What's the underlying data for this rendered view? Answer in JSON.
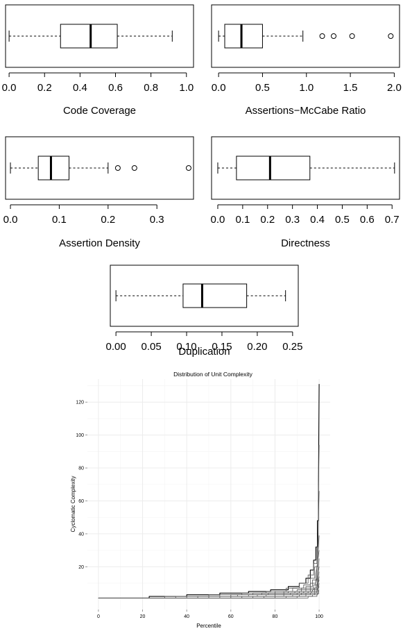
{
  "chart_data": [
    {
      "type": "box",
      "xlabel": "Code Coverage",
      "ticks": [
        0.0,
        0.2,
        0.4,
        0.6,
        0.8,
        1.0
      ],
      "tick_labels": [
        "0.0",
        "0.2",
        "0.4",
        "0.6",
        "0.8",
        "1.0"
      ],
      "xlim": [
        -0.02,
        1.04
      ],
      "stats": {
        "min": 0.0,
        "q1": 0.29,
        "median": 0.46,
        "q3": 0.61,
        "max": 0.92
      },
      "outliers": []
    },
    {
      "type": "box",
      "xlabel": "Assertions−McCabe Ratio",
      "ticks": [
        0.0,
        0.5,
        1.0,
        1.5,
        2.0
      ],
      "tick_labels": [
        "0.0",
        "0.5",
        "1.0",
        "1.5",
        "2.0"
      ],
      "xlim": [
        -0.08,
        2.06
      ],
      "stats": {
        "min": 0.0,
        "q1": 0.07,
        "median": 0.26,
        "q3": 0.5,
        "max": 0.96
      },
      "outliers": [
        1.18,
        1.31,
        1.52,
        1.96
      ]
    },
    {
      "type": "box",
      "xlabel": "Assertion Density",
      "ticks": [
        0.0,
        0.1,
        0.2,
        0.3
      ],
      "tick_labels": [
        "0.0",
        "0.1",
        "0.2",
        "0.3"
      ],
      "xlim": [
        -0.01,
        0.375
      ],
      "stats": {
        "min": 0.0,
        "q1": 0.057,
        "median": 0.083,
        "q3": 0.12,
        "max": 0.2
      },
      "outliers": [
        0.22,
        0.254,
        0.365
      ]
    },
    {
      "type": "box",
      "xlabel": "Directness",
      "ticks": [
        0.0,
        0.1,
        0.2,
        0.3,
        0.4,
        0.5,
        0.6,
        0.7
      ],
      "tick_labels": [
        "0.0",
        "0.1",
        "0.2",
        "0.3",
        "0.4",
        "0.5",
        "0.6",
        "0.7"
      ],
      "xlim": [
        -0.025,
        0.73
      ],
      "stats": {
        "min": 0.0,
        "q1": 0.075,
        "median": 0.21,
        "q3": 0.37,
        "max": 0.71
      },
      "outliers": []
    },
    {
      "type": "box",
      "xlabel": "Duplication",
      "ticks": [
        0.0,
        0.05,
        0.1,
        0.15,
        0.2,
        0.25
      ],
      "tick_labels": [
        "0.00",
        "0.05",
        "0.10",
        "0.15",
        "0.20",
        "0.25"
      ],
      "xlim": [
        -0.008,
        0.258
      ],
      "stats": {
        "min": 0.0,
        "q1": 0.095,
        "median": 0.122,
        "q3": 0.185,
        "max": 0.24
      },
      "outliers": []
    },
    {
      "type": "line",
      "title": "Distribution of Unit Complexity",
      "xlabel": "Percentile",
      "ylabel": "Cyclomatic Complexity",
      "xlim": [
        -5,
        105
      ],
      "ylim": [
        -6,
        134
      ],
      "xticks": [
        0,
        20,
        40,
        60,
        80,
        100
      ],
      "yticks": [
        20,
        40,
        60,
        80,
        100,
        120
      ],
      "grid": true,
      "series": [
        {
          "x": [
            0,
            23,
            23,
            40,
            40,
            55,
            55,
            68,
            68,
            78,
            78,
            86,
            86,
            91,
            91,
            94,
            94,
            96,
            96,
            97.5,
            97.5,
            98.5,
            98.5,
            99.2,
            99.2,
            99.7,
            99.7,
            100
          ],
          "y": [
            1,
            1,
            2,
            2,
            3,
            3,
            4,
            4,
            5,
            5,
            6,
            6,
            8,
            8,
            10,
            10,
            13,
            13,
            18,
            18,
            24,
            24,
            32,
            32,
            48,
            48,
            70,
            131
          ]
        },
        {
          "x": [
            0,
            30,
            30,
            50,
            50,
            65,
            65,
            76,
            76,
            85,
            85,
            91,
            91,
            95,
            95,
            97.5,
            97.5,
            99,
            99,
            99.6,
            99.6,
            100
          ],
          "y": [
            1,
            1,
            2,
            2,
            3,
            3,
            4,
            4,
            5,
            5,
            7,
            7,
            10,
            10,
            15,
            15,
            22,
            22,
            32,
            32,
            60,
            94
          ]
        },
        {
          "x": [
            0,
            35,
            35,
            55,
            55,
            70,
            70,
            80,
            80,
            88,
            88,
            93,
            93,
            96,
            96,
            98,
            98,
            99.3,
            99.3,
            100
          ],
          "y": [
            1,
            1,
            2,
            2,
            3,
            3,
            4,
            4,
            5,
            5,
            7,
            7,
            9,
            9,
            13,
            13,
            20,
            20,
            30,
            66
          ]
        },
        {
          "x": [
            0,
            40,
            40,
            60,
            60,
            74,
            74,
            84,
            84,
            90,
            90,
            94,
            94,
            97,
            97,
            99,
            99,
            100
          ],
          "y": [
            1,
            1,
            2,
            2,
            3,
            3,
            4,
            4,
            5,
            5,
            6,
            6,
            8,
            8,
            12,
            12,
            18,
            39
          ]
        },
        {
          "x": [
            0,
            45,
            45,
            63,
            63,
            77,
            77,
            86,
            86,
            92,
            92,
            96,
            96,
            98.5,
            98.5,
            100
          ],
          "y": [
            1,
            1,
            2,
            2,
            3,
            3,
            4,
            4,
            5,
            5,
            7,
            7,
            10,
            10,
            15,
            30
          ]
        },
        {
          "x": [
            0,
            50,
            50,
            68,
            68,
            80,
            80,
            89,
            89,
            94,
            94,
            97.5,
            97.5,
            99.2,
            99.2,
            100
          ],
          "y": [
            1,
            1,
            2,
            2,
            3,
            3,
            4,
            4,
            5,
            5,
            6,
            6,
            9,
            9,
            13,
            25
          ]
        },
        {
          "x": [
            0,
            55,
            55,
            72,
            72,
            84,
            84,
            91,
            91,
            96,
            96,
            98.5,
            98.5,
            100
          ],
          "y": [
            1,
            1,
            2,
            2,
            3,
            3,
            4,
            4,
            5,
            5,
            7,
            7,
            10,
            20
          ]
        },
        {
          "x": [
            0,
            60,
            60,
            76,
            76,
            87,
            87,
            93,
            93,
            97,
            97,
            99,
            99,
            100
          ],
          "y": [
            1,
            1,
            2,
            2,
            3,
            3,
            4,
            4,
            5,
            5,
            6,
            6,
            8,
            17
          ]
        },
        {
          "x": [
            0,
            65,
            65,
            80,
            80,
            90,
            90,
            95,
            95,
            98,
            98,
            99.5,
            99.5,
            100
          ],
          "y": [
            1,
            1,
            2,
            2,
            3,
            3,
            4,
            4,
            5,
            5,
            7,
            7,
            10,
            14
          ]
        },
        {
          "x": [
            0,
            70,
            70,
            84,
            84,
            92,
            92,
            96.5,
            96.5,
            99,
            99,
            100
          ],
          "y": [
            1,
            1,
            2,
            2,
            3,
            3,
            4,
            4,
            5,
            5,
            7,
            12
          ]
        },
        {
          "x": [
            0,
            75,
            75,
            88,
            88,
            94,
            94,
            98,
            98,
            99.5,
            99.5,
            100
          ],
          "y": [
            1,
            1,
            2,
            2,
            3,
            3,
            4,
            4,
            5,
            5,
            6,
            10
          ]
        },
        {
          "x": [
            0,
            80,
            80,
            91,
            91,
            96,
            96,
            98.8,
            98.8,
            100
          ],
          "y": [
            1,
            1,
            2,
            2,
            3,
            3,
            4,
            4,
            5,
            8
          ]
        },
        {
          "x": [
            0,
            85,
            85,
            94,
            94,
            98,
            98,
            99.5,
            99.5,
            100
          ],
          "y": [
            1,
            1,
            2,
            2,
            3,
            3,
            4,
            4,
            5,
            6
          ]
        },
        {
          "x": [
            0,
            90,
            90,
            97,
            97,
            99.3,
            99.3,
            100
          ],
          "y": [
            1,
            1,
            2,
            2,
            3,
            3,
            4,
            5
          ]
        },
        {
          "x": [
            0,
            95,
            95,
            99,
            99,
            100
          ],
          "y": [
            1,
            1,
            2,
            2,
            3,
            4
          ]
        }
      ],
      "colors": {
        "highlight": "#000000",
        "lines": "#555555",
        "grid": "#ececec"
      }
    }
  ]
}
